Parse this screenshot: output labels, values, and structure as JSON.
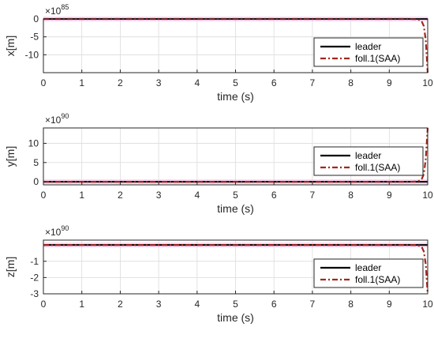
{
  "chart_data": [
    {
      "type": "line",
      "xlabel": "time (s)",
      "ylabel": "x[m]",
      "y_multiplier": "×10",
      "y_exponent": "85",
      "xlim": [
        0,
        10
      ],
      "ylim": [
        -15,
        0
      ],
      "x_ticks": [
        0,
        1,
        2,
        3,
        4,
        5,
        6,
        7,
        8,
        9,
        10
      ],
      "y_ticks": [
        0,
        -5,
        -10
      ],
      "grid": true,
      "legend": "right",
      "series": [
        {
          "name": "leader",
          "color": "#000000",
          "style": "solid",
          "x": [
            0,
            2,
            4,
            6,
            8,
            9.5,
            9.8,
            9.9,
            10
          ],
          "y": [
            0,
            0,
            0,
            0,
            0,
            0,
            0,
            0,
            0
          ]
        },
        {
          "name": "foll.1(SAA)",
          "color": "#a0281e",
          "style": "dashdot",
          "x": [
            0,
            2,
            4,
            6,
            8,
            9.5,
            9.7,
            9.8,
            9.85,
            9.9,
            9.95,
            10
          ],
          "y": [
            0,
            0,
            0,
            0,
            0,
            0,
            -0.05,
            -0.3,
            -0.8,
            -2,
            -6,
            -15
          ]
        }
      ]
    },
    {
      "type": "line",
      "xlabel": "time (s)",
      "ylabel": "y[m]",
      "y_multiplier": "×10",
      "y_exponent": "90",
      "xlim": [
        0,
        10
      ],
      "ylim": [
        -0.8,
        14
      ],
      "x_ticks": [
        0,
        1,
        2,
        3,
        4,
        5,
        6,
        7,
        8,
        9,
        10
      ],
      "y_ticks": [
        0,
        5,
        10
      ],
      "grid": true,
      "legend": "right",
      "series": [
        {
          "name": "leader",
          "color": "#000000",
          "style": "solid",
          "x": [
            0,
            2,
            4,
            6,
            8,
            9.5,
            9.8,
            9.9,
            10
          ],
          "y": [
            0,
            0,
            0,
            0,
            0,
            0,
            0,
            0,
            0
          ]
        },
        {
          "name": "foll.1(SAA)",
          "color": "#a0281e",
          "style": "dashdot",
          "x": [
            0,
            2,
            4,
            6,
            8,
            9.5,
            9.7,
            9.8,
            9.85,
            9.9,
            9.95,
            10
          ],
          "y": [
            0,
            0,
            0,
            0,
            0,
            0,
            0.05,
            0.3,
            0.8,
            2,
            6,
            14
          ]
        }
      ]
    },
    {
      "type": "line",
      "xlabel": "time (s)",
      "ylabel": "z[m]",
      "y_multiplier": "×10",
      "y_exponent": "90",
      "xlim": [
        0,
        10
      ],
      "ylim": [
        -3,
        0.3
      ],
      "x_ticks": [
        0,
        1,
        2,
        3,
        4,
        5,
        6,
        7,
        8,
        9,
        10
      ],
      "y_ticks": [
        -1,
        -2,
        -3
      ],
      "grid": true,
      "legend": "right",
      "series": [
        {
          "name": "leader",
          "color": "#000000",
          "style": "solid",
          "x": [
            0,
            2,
            4,
            6,
            8,
            9.5,
            9.8,
            9.9,
            10
          ],
          "y": [
            0,
            0,
            0,
            0,
            0,
            0,
            0,
            0,
            0
          ]
        },
        {
          "name": "foll.1(SAA)",
          "color": "#a0281e",
          "style": "dashdot",
          "x": [
            0,
            2,
            4,
            6,
            8,
            9.5,
            9.7,
            9.8,
            9.85,
            9.9,
            9.95,
            10
          ],
          "y": [
            0,
            0,
            0,
            0,
            0,
            0,
            -0.01,
            -0.06,
            -0.15,
            -0.4,
            -1.2,
            -3
          ]
        }
      ]
    }
  ]
}
